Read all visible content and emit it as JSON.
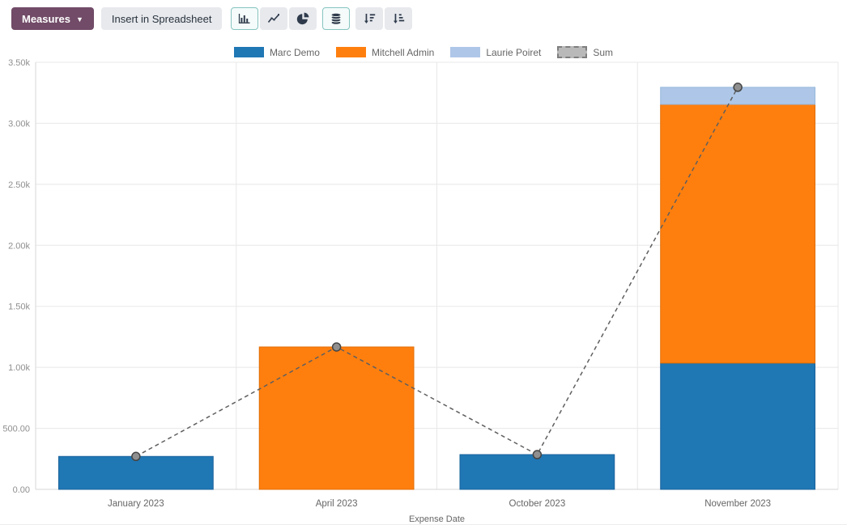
{
  "toolbar": {
    "measures_label": "Measures",
    "insert_label": "Insert in Spreadsheet",
    "icons": [
      {
        "name": "bar-chart",
        "active": true
      },
      {
        "name": "line-chart",
        "active": false
      },
      {
        "name": "pie-chart",
        "active": false
      },
      {
        "name": "stacked",
        "active": true
      },
      {
        "name": "sort-descending",
        "active": false
      },
      {
        "name": "sort-ascending",
        "active": false
      }
    ],
    "measures_button_color": "#714B67"
  },
  "chart_data": {
    "type": "bar",
    "stacked": true,
    "grid": true,
    "legend_position": "top",
    "categories": [
      "January 2023",
      "April 2023",
      "October 2023",
      "November 2023"
    ],
    "series": [
      {
        "name": "Marc Demo",
        "color": "#1f77b4",
        "border": "#1a639c",
        "values": [
          270,
          0,
          285,
          1035
        ]
      },
      {
        "name": "Mitchell Admin",
        "color": "#ff7f0e",
        "border": "#e06d06",
        "values": [
          0,
          1167,
          0,
          2120
        ]
      },
      {
        "name": "Laurie Poiret",
        "color": "#aec7e8",
        "border": "#96b7dc",
        "values": [
          0,
          0,
          0,
          140
        ]
      }
    ],
    "line_series": {
      "name": "Sum",
      "style": "dashed",
      "color": "#5f5f5f",
      "marker_fill": "#8f8f8f",
      "marker_stroke": "#454545",
      "values": [
        270,
        1167,
        285,
        3295
      ]
    },
    "xlabel": "Expense Date",
    "ylabel": "",
    "ylim": [
      0,
      3500
    ],
    "y_ticks": [
      {
        "value": 0,
        "label": "0.00"
      },
      {
        "value": 500,
        "label": "500.00"
      },
      {
        "value": 1000,
        "label": "1.00k"
      },
      {
        "value": 1500,
        "label": "1.50k"
      },
      {
        "value": 2000,
        "label": "2.00k"
      },
      {
        "value": 2500,
        "label": "2.50k"
      },
      {
        "value": 3000,
        "label": "3.00k"
      },
      {
        "value": 3500,
        "label": "3.50k"
      }
    ]
  }
}
